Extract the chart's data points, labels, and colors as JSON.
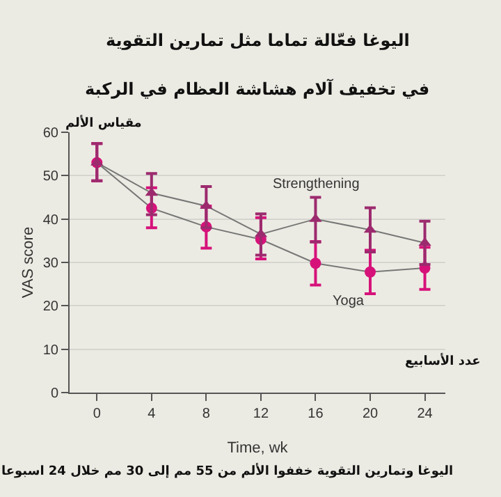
{
  "chart_data": {
    "type": "line",
    "title": "اليوغا فعّالة تماما مثل تمارين التقوية",
    "subtitle": "في تخفيف آلام هشاشة العظام في الركبة",
    "xlabel": "Time, wk",
    "ylabel": "VAS score",
    "annotations": [
      "مقياس الألم",
      "عدد الأسابيع",
      "اليوغا وتمارين التقوية خففوا الألم من 55 مم إلى 30 مم خلال 24 اسبوعا"
    ],
    "x": [
      0,
      4,
      8,
      12,
      16,
      20,
      24
    ],
    "series": [
      {
        "name": "Strengthening",
        "color": "#9c2a6e",
        "marker": "triangle",
        "values": [
          53,
          46,
          43,
          36.5,
          40,
          37.5,
          34.5
        ],
        "errors": [
          [
            48.8,
            57.4
          ],
          [
            41,
            50.5
          ],
          [
            38,
            47.5
          ],
          [
            31.7,
            41.2
          ],
          [
            34.7,
            45
          ],
          [
            32.4,
            42.6
          ],
          [
            29.5,
            39.5
          ]
        ]
      },
      {
        "name": "Yoga",
        "color": "#d6127a",
        "marker": "circle",
        "values": [
          53,
          42.5,
          38.2,
          35.3,
          29.8,
          27.8,
          28.7
        ],
        "errors": [
          [
            48.8,
            57.4
          ],
          [
            38,
            47.2
          ],
          [
            33.3,
            43
          ],
          [
            30.8,
            40.3
          ],
          [
            24.8,
            34.8
          ],
          [
            22.8,
            32.8
          ],
          [
            23.8,
            33.5
          ]
        ]
      }
    ],
    "xlim": [
      -2,
      25.5
    ],
    "xticks": [
      0,
      4,
      8,
      12,
      16,
      20,
      24
    ],
    "ylim": [
      0,
      60
    ],
    "yticks": [
      0,
      10,
      20,
      30,
      40,
      50,
      60
    ],
    "grid": "y",
    "legend": false
  }
}
